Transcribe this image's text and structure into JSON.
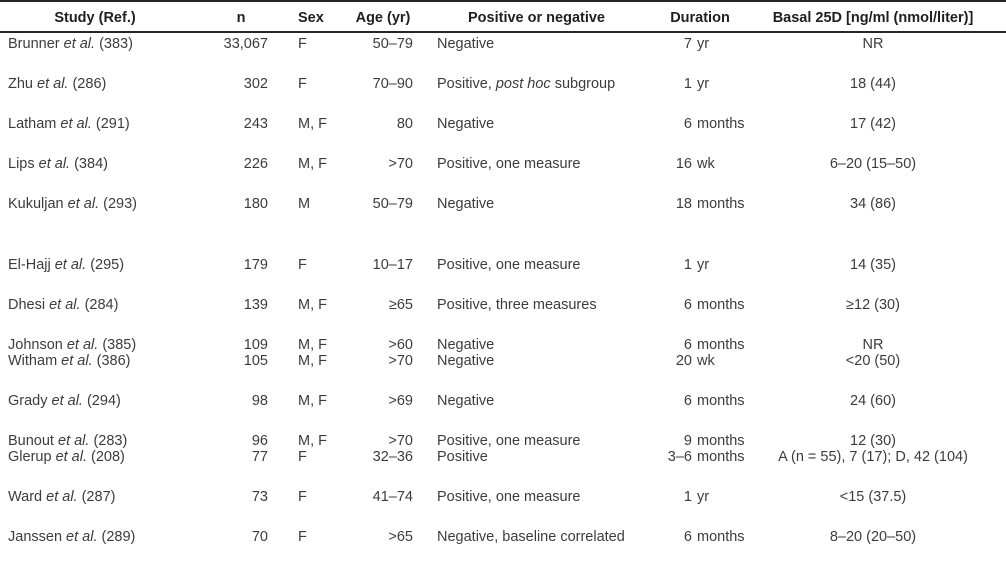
{
  "style": {
    "text_color": "#3c3c3c",
    "heading_color": "#1f1f1f",
    "rule_color": "#262626",
    "background": "#ffffff"
  },
  "table": {
    "columns": [
      {
        "label": "Study (Ref.)"
      },
      {
        "label": "n"
      },
      {
        "label": "Sex"
      },
      {
        "label": "Age (yr)"
      },
      {
        "label": "Positive or negative"
      },
      {
        "label": "Duration"
      },
      {
        "label": "Basal 25D [ng/ml (nmol/liter)]"
      }
    ],
    "rows": [
      {
        "study": {
          "name": "Brunner ",
          "etal": "et al.",
          "ref": " (383)"
        },
        "n": "33,067",
        "sex": "F",
        "age": "50–79",
        "result": {
          "pre": "Negative",
          "italic": "",
          "post": ""
        },
        "duration": {
          "num": "7",
          "unit": "yr"
        },
        "basal": "NR",
        "spacing": "first"
      },
      {
        "study": {
          "name": "Zhu ",
          "etal": "et al.",
          "ref": " (286)"
        },
        "n": "302",
        "sex": "F",
        "age": "70–90",
        "result": {
          "pre": "Positive, ",
          "italic": "post hoc",
          "post": " subgroup"
        },
        "duration": {
          "num": "1",
          "unit": "yr"
        },
        "basal": "18 (44)",
        "spacing": "normal"
      },
      {
        "study": {
          "name": "Latham ",
          "etal": "et al.",
          "ref": " (291)"
        },
        "n": "243",
        "sex": "M, F",
        "age": "80",
        "result": {
          "pre": "Negative",
          "italic": "",
          "post": ""
        },
        "duration": {
          "num": "6",
          "unit": "months"
        },
        "basal": "17 (42)",
        "spacing": "normal"
      },
      {
        "study": {
          "name": "Lips ",
          "etal": "et al.",
          "ref": " (384)"
        },
        "n": "226",
        "sex": "M, F",
        "age": ">70",
        "result": {
          "pre": "Positive, one measure",
          "italic": "",
          "post": ""
        },
        "duration": {
          "num": "16",
          "unit": "wk"
        },
        "basal": "6–20 (15–50)",
        "spacing": "normal"
      },
      {
        "study": {
          "name": "Kukuljan ",
          "etal": "et al.",
          "ref": " (293)"
        },
        "n": "180",
        "sex": "M",
        "age": "50–79",
        "result": {
          "pre": "Negative",
          "italic": "",
          "post": ""
        },
        "duration": {
          "num": "18",
          "unit": "months"
        },
        "basal": "34 (86)",
        "spacing": "normal"
      },
      {
        "study": {
          "name": "El-Hajj ",
          "etal": "et al.",
          "ref": " (295)"
        },
        "n": "179",
        "sex": "F",
        "age": "10–17",
        "result": {
          "pre": "Positive, one measure",
          "italic": "",
          "post": ""
        },
        "duration": {
          "num": "1",
          "unit": "yr"
        },
        "basal": "14 (35)",
        "spacing": "wide"
      },
      {
        "study": {
          "name": "Dhesi ",
          "etal": "et al.",
          "ref": " (284)"
        },
        "n": "139",
        "sex": "M, F",
        "age": "≥65",
        "result": {
          "pre": "Positive, three measures",
          "italic": "",
          "post": ""
        },
        "duration": {
          "num": "6",
          "unit": "months"
        },
        "basal": "≥12 (30)",
        "spacing": "normal"
      },
      {
        "study": {
          "name": "Johnson ",
          "etal": "et al.",
          "ref": " (385)"
        },
        "n": "109",
        "sex": "M, F",
        "age": ">60",
        "result": {
          "pre": "Negative",
          "italic": "",
          "post": ""
        },
        "duration": {
          "num": "6",
          "unit": "months"
        },
        "basal": "NR",
        "spacing": "normal"
      },
      {
        "study": {
          "name": "Witham ",
          "etal": "et al.",
          "ref": " (386)"
        },
        "n": "105",
        "sex": "M, F",
        "age": ">70",
        "result": {
          "pre": "Negative",
          "italic": "",
          "post": ""
        },
        "duration": {
          "num": "20",
          "unit": "wk"
        },
        "basal": "<20 (50)",
        "spacing": "tight"
      },
      {
        "study": {
          "name": "Grady ",
          "etal": "et al.",
          "ref": " (294)"
        },
        "n": "98",
        "sex": "M, F",
        "age": ">69",
        "result": {
          "pre": "Negative",
          "italic": "",
          "post": ""
        },
        "duration": {
          "num": "6",
          "unit": "months"
        },
        "basal": "24 (60)",
        "spacing": "normal"
      },
      {
        "study": {
          "name": "Bunout ",
          "etal": "et al.",
          "ref": " (283)"
        },
        "n": "96",
        "sex": "M, F",
        "age": ">70",
        "result": {
          "pre": "Positive, one measure",
          "italic": "",
          "post": ""
        },
        "duration": {
          "num": "9",
          "unit": "months"
        },
        "basal": "12 (30)",
        "spacing": "normal"
      },
      {
        "study": {
          "name": "Glerup ",
          "etal": "et al.",
          "ref": " (208)"
        },
        "n": "77",
        "sex": "F",
        "age": "32–36",
        "result": {
          "pre": "Positive",
          "italic": "",
          "post": ""
        },
        "duration": {
          "num": "3–6",
          "unit": "months"
        },
        "basal": "A (n = 55), 7 (17); D, 42 (104)",
        "spacing": "tight"
      },
      {
        "study": {
          "name": "Ward ",
          "etal": "et al.",
          "ref": " (287)"
        },
        "n": "73",
        "sex": "F",
        "age": "41–74",
        "result": {
          "pre": "Positive, one measure",
          "italic": "",
          "post": ""
        },
        "duration": {
          "num": "1",
          "unit": "yr"
        },
        "basal": "<15 (37.5)",
        "spacing": "normal"
      },
      {
        "study": {
          "name": "Janssen ",
          "etal": "et al.",
          "ref": " (289)"
        },
        "n": "70",
        "sex": "F",
        "age": ">65",
        "result": {
          "pre": "Negative, baseline correlated",
          "italic": "",
          "post": ""
        },
        "duration": {
          "num": "6",
          "unit": "months"
        },
        "basal": "8–20 (20–50)",
        "spacing": "normal"
      }
    ]
  }
}
